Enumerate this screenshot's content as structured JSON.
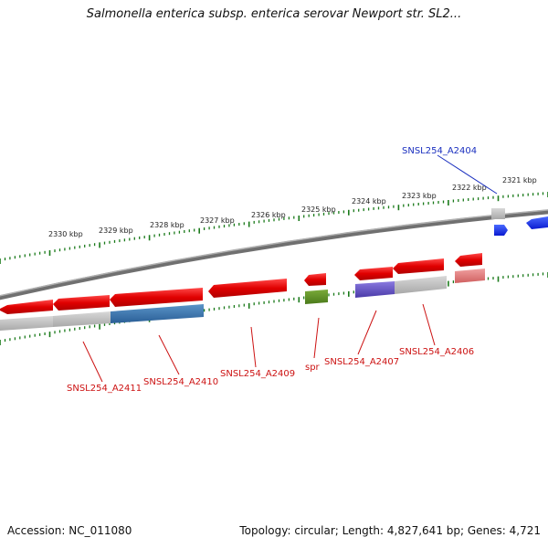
{
  "title": "Salmonella enterica subsp. enterica serovar Newport str. SL2...",
  "footer": {
    "accession": "Accession: NC_011080",
    "topology": "Topology: circular; Length: 4,827,641 bp; Genes: 4,721"
  },
  "kbp_labels": [
    "2330 kbp",
    "2329 kbp",
    "2328 kbp",
    "2327 kbp",
    "2326 kbp",
    "2325 kbp",
    "2324 kbp",
    "2323 kbp",
    "2322 kbp",
    "2321 kbp"
  ],
  "gene_labels": [
    "SNSL254_A2404",
    "SNSL254_A2406",
    "SNSL254_A2407",
    "spr",
    "SNSL254_A2409",
    "SNSL254_A2410",
    "SNSL254_A2411"
  ],
  "colors": {
    "forward_gene": "#1a2fe0",
    "reverse_gene": "#e01010",
    "tick": "#1a7a1a",
    "backbone": "#808080",
    "highlight_label": "#1a2fbf",
    "label": "#cc1111",
    "spr_feature": "#5a8a2a",
    "a2410_feature": "#3a78b0",
    "a2407_feature": "#6655bb"
  }
}
